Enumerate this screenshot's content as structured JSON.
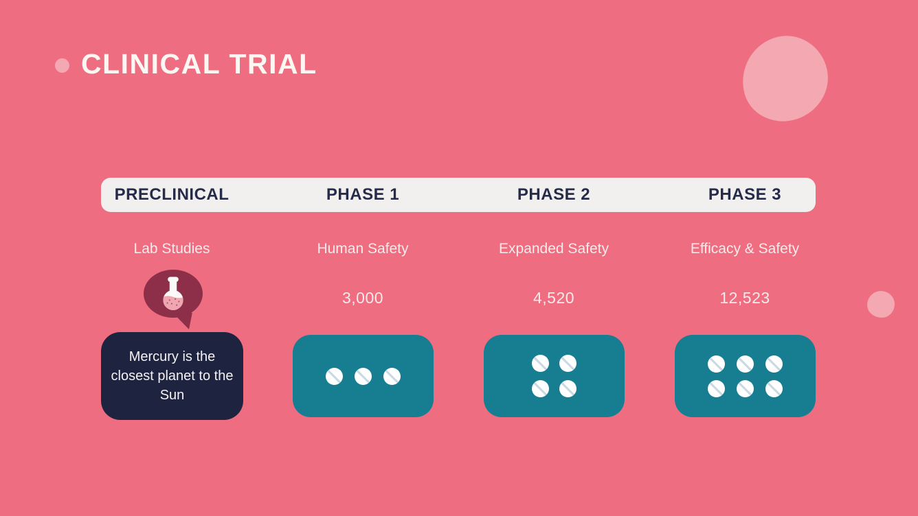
{
  "slide": {
    "title": "CLINICAL TRIAL",
    "columns": [
      {
        "id": "preclinical",
        "header": "PRECLINICAL",
        "subtitle": "Lab Studies",
        "participants": "",
        "note": "Mercury is the closest planet to the Sun",
        "icon": "flask-in-speech-bubble",
        "pills": 0
      },
      {
        "id": "phase-1",
        "header": "PHASE 1",
        "subtitle": "Human Safety",
        "participants": "3,000",
        "pills": 3
      },
      {
        "id": "phase-2",
        "header": "PHASE 2",
        "subtitle": "Expanded Safety",
        "participants": "4,520",
        "pills": 4
      },
      {
        "id": "phase-3",
        "header": "PHASE 3",
        "subtitle": "Efficacy & Safety",
        "participants": "12,523",
        "pills": 6
      }
    ],
    "colors": {
      "background": "#EE6D80",
      "accent_blob": "#F3A8B2",
      "header_bar": "#F1F0EE",
      "header_text": "#252B49",
      "phase_box": "#177E92",
      "note_box": "#1E2340",
      "bubble": "#8D2F49",
      "pill": "#FFFFFF",
      "light_text": "#FAE9EA"
    }
  }
}
